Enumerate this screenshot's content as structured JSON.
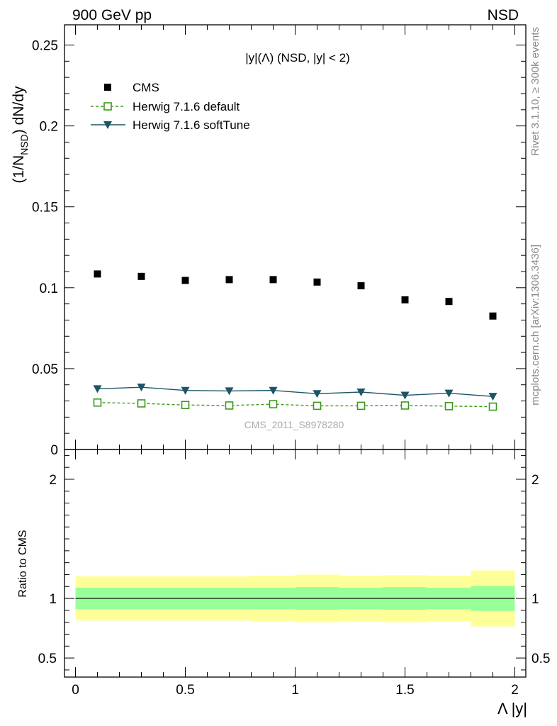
{
  "header": {
    "left": "900 GeV pp",
    "right": "NSD"
  },
  "side_labels": {
    "rivet": "Rivet 3.1.10, ≥ 300k events",
    "mcplots": "mcplots.cern.ch [arXiv:1306.3436]"
  },
  "chart_data": {
    "type": "scatter",
    "title": "|y|(Λ) (NSD, |y| < 2)",
    "ylabel_main": "(1/N_NSD) dN/dy",
    "ylabel_ratio": "Ratio to CMS",
    "xlabel": "Λ |y|",
    "watermark": "CMS_2011_S8978280",
    "xlim": [
      -0.05,
      2.05
    ],
    "ylim_main": [
      0,
      0.2625
    ],
    "ylim_ratio": [
      0.34,
      2.25
    ],
    "x_ticks": [
      0,
      0.5,
      1,
      1.5,
      2
    ],
    "x_tick_labels": [
      "0",
      "0.5",
      "1",
      "1.5",
      "2"
    ],
    "y_ticks_main": [
      0,
      0.05,
      0.1,
      0.15,
      0.2,
      0.25
    ],
    "y_tick_labels_main": [
      "0",
      "0.05",
      "0.1",
      "0.15",
      "0.2",
      "0.25"
    ],
    "y_ticks_ratio": [
      0.5,
      1,
      2
    ],
    "y_tick_labels_ratio": [
      "0.5",
      "1",
      "2"
    ],
    "x": [
      0.1,
      0.3,
      0.5,
      0.7,
      0.9,
      1.1,
      1.3,
      1.5,
      1.7,
      1.9
    ],
    "bin_edges": [
      0,
      0.2,
      0.4,
      0.6,
      0.8,
      1.0,
      1.2,
      1.4,
      1.6,
      1.8,
      2.0
    ],
    "series": [
      {
        "name": "CMS",
        "color": "#000000",
        "marker": "filled-square",
        "values": [
          0.1085,
          0.107,
          0.1045,
          0.105,
          0.105,
          0.1035,
          0.1012,
          0.0925,
          0.0915,
          0.0825
        ]
      },
      {
        "name": "Herwig 7.1.6 default",
        "color": "#3a9a1a",
        "marker": "open-square",
        "line": "dashed",
        "values": [
          0.029,
          0.0285,
          0.0275,
          0.0272,
          0.028,
          0.027,
          0.027,
          0.0272,
          0.0268,
          0.0265
        ]
      },
      {
        "name": "Herwig 7.1.6 softTune",
        "color": "#1d5566",
        "marker": "filled-triangle-down",
        "line": "solid",
        "values": [
          0.0375,
          0.0385,
          0.0365,
          0.0362,
          0.0365,
          0.0345,
          0.0355,
          0.0335,
          0.0348,
          0.0328
        ]
      }
    ],
    "ratio_band_inner": [
      {
        "lo": 0.91,
        "hi": 1.09
      },
      {
        "lo": 0.91,
        "hi": 1.09
      },
      {
        "lo": 0.91,
        "hi": 1.09
      },
      {
        "lo": 0.91,
        "hi": 1.09
      },
      {
        "lo": 0.91,
        "hi": 1.09
      },
      {
        "lo": 0.905,
        "hi": 1.095
      },
      {
        "lo": 0.91,
        "hi": 1.09
      },
      {
        "lo": 0.905,
        "hi": 1.095
      },
      {
        "lo": 0.91,
        "hi": 1.09
      },
      {
        "lo": 0.895,
        "hi": 1.105
      }
    ],
    "ratio_band_outer": [
      {
        "lo": 0.815,
        "hi": 1.185
      },
      {
        "lo": 0.815,
        "hi": 1.185
      },
      {
        "lo": 0.815,
        "hi": 1.185
      },
      {
        "lo": 0.815,
        "hi": 1.185
      },
      {
        "lo": 0.81,
        "hi": 1.19
      },
      {
        "lo": 0.8,
        "hi": 1.2
      },
      {
        "lo": 0.81,
        "hi": 1.19
      },
      {
        "lo": 0.8,
        "hi": 1.195
      },
      {
        "lo": 0.81,
        "hi": 1.19
      },
      {
        "lo": 0.765,
        "hi": 1.235
      }
    ],
    "colors": {
      "band_inner": "#99ff99",
      "band_outer": "#ffff99"
    },
    "legend_position": "top-left"
  }
}
